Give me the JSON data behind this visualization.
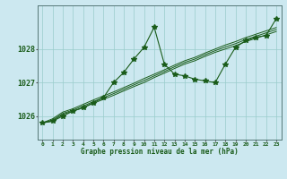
{
  "title": "Graphe pression niveau de la mer (hPa)",
  "background_color": "#cce8f0",
  "grid_color": "#99cccc",
  "line_color": "#1a5c1a",
  "x_labels": [
    "0",
    "1",
    "2",
    "3",
    "4",
    "5",
    "6",
    "7",
    "8",
    "9",
    "10",
    "11",
    "12",
    "13",
    "14",
    "15",
    "16",
    "17",
    "18",
    "19",
    "20",
    "21",
    "22",
    "23"
  ],
  "ylim": [
    1025.3,
    1029.3
  ],
  "yticks": [
    1026,
    1027,
    1028
  ],
  "series": {
    "main": [
      1025.8,
      1025.85,
      1026.0,
      1026.15,
      1026.25,
      1026.4,
      1026.55,
      1027.0,
      1027.3,
      1027.7,
      1028.05,
      1028.65,
      1027.55,
      1027.25,
      1027.2,
      1027.1,
      1027.05,
      1027.0,
      1027.55,
      1028.05,
      1028.25,
      1028.35,
      1028.4,
      1028.9
    ],
    "line2": [
      1025.8,
      1025.85,
      1026.05,
      1026.15,
      1026.25,
      1026.38,
      1026.5,
      1026.62,
      1026.75,
      1026.88,
      1027.0,
      1027.15,
      1027.28,
      1027.42,
      1027.55,
      1027.65,
      1027.78,
      1027.9,
      1028.0,
      1028.1,
      1028.22,
      1028.32,
      1028.42,
      1028.52
    ],
    "line3": [
      1025.8,
      1025.88,
      1026.08,
      1026.18,
      1026.3,
      1026.43,
      1026.55,
      1026.67,
      1026.8,
      1026.93,
      1027.06,
      1027.2,
      1027.33,
      1027.47,
      1027.6,
      1027.7,
      1027.83,
      1027.95,
      1028.06,
      1028.16,
      1028.28,
      1028.38,
      1028.48,
      1028.58
    ],
    "line4": [
      1025.8,
      1025.92,
      1026.12,
      1026.22,
      1026.35,
      1026.48,
      1026.6,
      1026.72,
      1026.85,
      1026.98,
      1027.12,
      1027.25,
      1027.38,
      1027.52,
      1027.65,
      1027.75,
      1027.88,
      1028.0,
      1028.12,
      1028.22,
      1028.34,
      1028.44,
      1028.54,
      1028.64
    ]
  }
}
